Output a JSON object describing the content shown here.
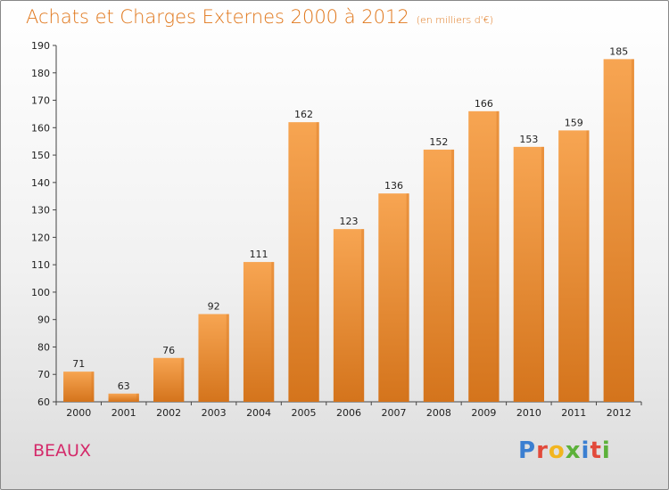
{
  "header": {
    "title": "Achats et Charges Externes 2000 à 2012",
    "subtitle": "(en milliers d'€)"
  },
  "footer": {
    "place": "BEAUX",
    "logo": "Proxiti"
  },
  "colors": {
    "bar_light": "#f7a552",
    "bar_dark": "#d4741c",
    "title": "#e0761a",
    "place": "#d42a6a"
  },
  "chart_data": {
    "type": "bar",
    "categories": [
      "2000",
      "2001",
      "2002",
      "2003",
      "2004",
      "2005",
      "2006",
      "2007",
      "2008",
      "2009",
      "2010",
      "2011",
      "2012"
    ],
    "values": [
      71,
      63,
      76,
      92,
      111,
      162,
      123,
      136,
      152,
      166,
      153,
      159,
      185
    ],
    "ylim": [
      60,
      190
    ],
    "yticks": [
      60,
      70,
      80,
      90,
      100,
      110,
      120,
      130,
      140,
      150,
      160,
      170,
      180,
      190
    ],
    "grid": false,
    "data_labels": true
  }
}
